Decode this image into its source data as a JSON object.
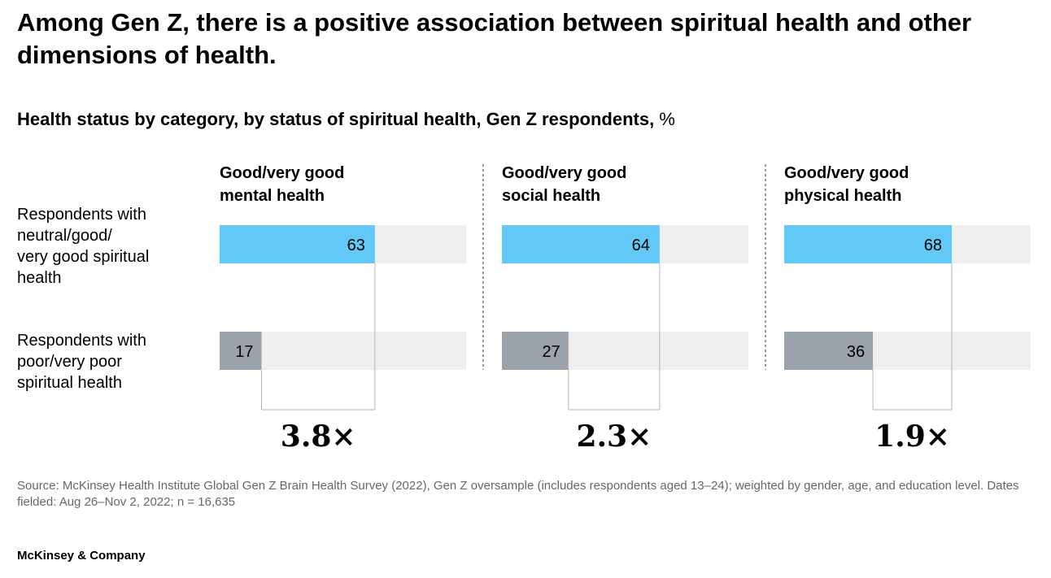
{
  "title": "Among Gen Z, there is a positive association between spiritual health and other dimensions of health.",
  "subtitle": "Health status by category, by status of spiritual health, Gen Z respondents,",
  "subtitle_unit": "%",
  "footnote": "Source: McKinsey Health Institute Global Gen Z Brain Health Survey (2022), Gen Z oversample (includes respondents aged 13–24); weighted by gender, age, and education level. Dates fielded: Aug 26–Nov 2, 2022; n = 16,635",
  "brand": "McKinsey & Company",
  "colors": {
    "good_spiritual": "#62c8f5",
    "poor_spiritual": "#9ba2aa",
    "track": "#efefef",
    "connector": "#b4b4b4",
    "divider": "#333333"
  },
  "chart_data": {
    "type": "bar",
    "orientation": "horizontal",
    "xlim": [
      0,
      100
    ],
    "categories": [
      "Respondents with neutral/good/ very good spiritual health",
      "Respondents with poor/very poor spiritual health"
    ],
    "category_lines": [
      [
        "Respondents with",
        "neutral/good/",
        "very good spiritual",
        "health"
      ],
      [
        "Respondents with",
        "poor/very poor",
        "spiritual health"
      ]
    ],
    "panels": [
      {
        "title": [
          "Good/very good",
          "mental health"
        ],
        "values": [
          63,
          17
        ],
        "multiplier": "3.8×"
      },
      {
        "title": [
          "Good/very good",
          "social health"
        ],
        "values": [
          64,
          27
        ],
        "multiplier": "2.3×"
      },
      {
        "title": [
          "Good/very good",
          "physical health"
        ],
        "values": [
          68,
          36
        ],
        "multiplier": "1.9×"
      }
    ]
  }
}
